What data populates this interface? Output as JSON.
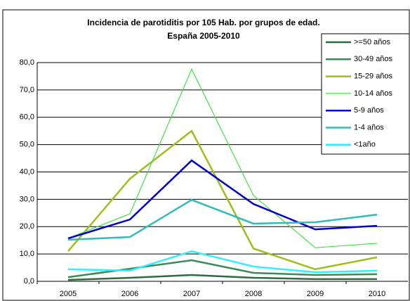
{
  "chart_data": {
    "type": "line",
    "title": [
      "Incidencia de parotiditis por 105 Hab. por grupos de edad.",
      "España 2005-2010"
    ],
    "categories": [
      "2005",
      "2006",
      "2007",
      "2008",
      "2009",
      "2010"
    ],
    "series": [
      {
        "name": ">=50 años",
        "color": "#2f6b3f",
        "values": [
          0.5,
          1.3,
          2.3,
          1.3,
          0.8,
          0.8
        ]
      },
      {
        "name": "30-49 años",
        "color": "#3a8a5c",
        "values": [
          1.5,
          4.6,
          7.7,
          3.1,
          2.3,
          2.6
        ]
      },
      {
        "name": "15-29 años",
        "color": "#9cbf1a",
        "values": [
          11.0,
          37.5,
          55.0,
          12.0,
          4.4,
          8.8
        ]
      },
      {
        "name": "10-14 años",
        "color": "#44e044",
        "values": [
          15.7,
          24.7,
          77.6,
          31.4,
          12.3,
          13.9
        ]
      },
      {
        "name": "5-9 años",
        "color": "#0000cc",
        "values": [
          15.7,
          22.6,
          44.2,
          28.3,
          19.0,
          20.3
        ]
      },
      {
        "name": "1-4 años",
        "color": "#33bbbb",
        "values": [
          15.2,
          16.2,
          29.8,
          21.1,
          21.6,
          24.4
        ]
      },
      {
        "name": "<1año",
        "color": "#33eeff",
        "values": [
          4.4,
          3.9,
          11.0,
          5.4,
          3.3,
          3.9
        ]
      }
    ],
    "ylim": [
      0,
      80
    ],
    "yticks": [
      {
        "value": 0,
        "label": "0,0"
      },
      {
        "value": 10,
        "label": "10,0"
      },
      {
        "value": 20,
        "label": "20,0"
      },
      {
        "value": 30,
        "label": "30,0"
      },
      {
        "value": 40,
        "label": "40,0"
      },
      {
        "value": 50,
        "label": "50,0"
      },
      {
        "value": 60,
        "label": "60,0"
      },
      {
        "value": 70,
        "label": "70,0"
      },
      {
        "value": 80,
        "label": "80,0"
      }
    ],
    "grid": true
  }
}
